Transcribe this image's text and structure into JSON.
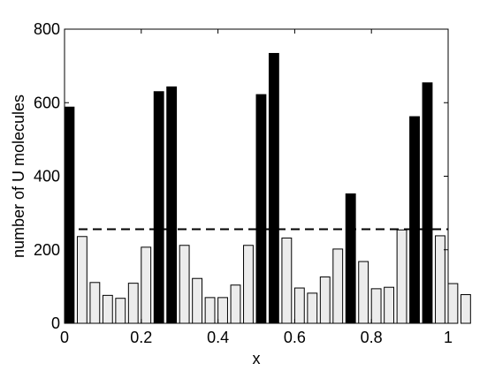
{
  "chart_data": {
    "type": "bar",
    "xlabel": "x",
    "ylabel": "number of U molecules",
    "xlim": [
      0,
      1
    ],
    "ylim": [
      0,
      800
    ],
    "xticks": [
      "0",
      "0.2",
      "0.4",
      "0.6",
      "0.8",
      "1"
    ],
    "yticks": [
      "0",
      "200",
      "400",
      "600",
      "800"
    ],
    "grid": false,
    "bar_width": 0.025,
    "threshold_line": {
      "y": 256,
      "style": "dashed",
      "color": "#000000"
    },
    "colors": {
      "high": "#000000",
      "low": "#ececec",
      "edge": "#000000"
    },
    "bars": [
      {
        "x": 0.0,
        "value": 588,
        "group": "high"
      },
      {
        "x": 0.03333,
        "value": 236,
        "group": "low"
      },
      {
        "x": 0.06667,
        "value": 111,
        "group": "low"
      },
      {
        "x": 0.1,
        "value": 76,
        "group": "low"
      },
      {
        "x": 0.13333,
        "value": 68,
        "group": "low"
      },
      {
        "x": 0.16667,
        "value": 109,
        "group": "low"
      },
      {
        "x": 0.2,
        "value": 207,
        "group": "low"
      },
      {
        "x": 0.23333,
        "value": 630,
        "group": "high"
      },
      {
        "x": 0.26667,
        "value": 643,
        "group": "high"
      },
      {
        "x": 0.3,
        "value": 212,
        "group": "low"
      },
      {
        "x": 0.33333,
        "value": 122,
        "group": "low"
      },
      {
        "x": 0.36667,
        "value": 70,
        "group": "low"
      },
      {
        "x": 0.4,
        "value": 70,
        "group": "low"
      },
      {
        "x": 0.43333,
        "value": 104,
        "group": "low"
      },
      {
        "x": 0.46667,
        "value": 212,
        "group": "low"
      },
      {
        "x": 0.5,
        "value": 622,
        "group": "high"
      },
      {
        "x": 0.53333,
        "value": 734,
        "group": "high"
      },
      {
        "x": 0.56667,
        "value": 232,
        "group": "low"
      },
      {
        "x": 0.6,
        "value": 96,
        "group": "low"
      },
      {
        "x": 0.63333,
        "value": 82,
        "group": "low"
      },
      {
        "x": 0.66667,
        "value": 126,
        "group": "low"
      },
      {
        "x": 0.7,
        "value": 202,
        "group": "low"
      },
      {
        "x": 0.73333,
        "value": 352,
        "group": "high"
      },
      {
        "x": 0.76667,
        "value": 168,
        "group": "low"
      },
      {
        "x": 0.8,
        "value": 94,
        "group": "low"
      },
      {
        "x": 0.83333,
        "value": 98,
        "group": "low"
      },
      {
        "x": 0.86667,
        "value": 254,
        "group": "low"
      },
      {
        "x": 0.9,
        "value": 562,
        "group": "high"
      },
      {
        "x": 0.93333,
        "value": 654,
        "group": "high"
      },
      {
        "x": 0.96667,
        "value": 238,
        "group": "low"
      },
      {
        "x": 1.0,
        "value": 108,
        "group": "low"
      },
      {
        "x": 1.03333,
        "value": 78,
        "group": "low"
      }
    ]
  }
}
